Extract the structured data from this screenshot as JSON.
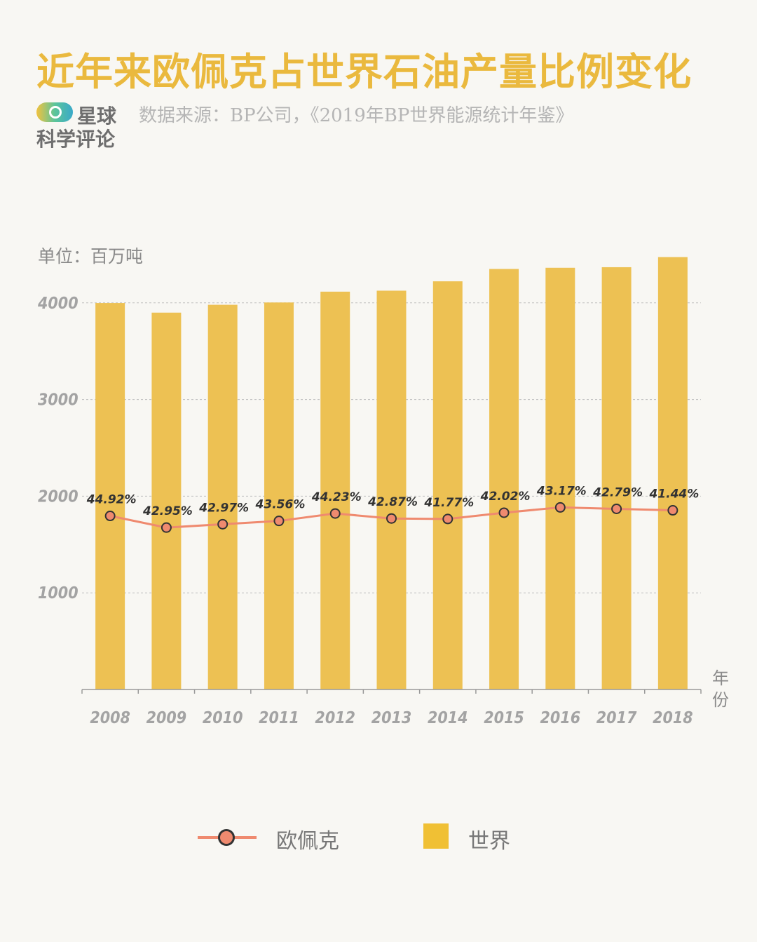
{
  "title": "近年来欧佩克占世界石油产量比例变化",
  "logo": {
    "line1": "星球",
    "line2": "科学评论"
  },
  "source": "数据来源：BP公司，《2019年BP世界能源统计年鉴》",
  "unit_label": "单位：百万吨",
  "x_axis_name": [
    "年",
    "份"
  ],
  "colors": {
    "bar": "#edc153",
    "line": "#ef8a6f",
    "marker_stroke": "#333333",
    "title": "#eab93e"
  },
  "legend": {
    "opec": "欧佩克",
    "world": "世界"
  },
  "chart_data": {
    "type": "bar+line",
    "title": "近年来欧佩克占世界石油产量比例变化",
    "ylabel": "单位：百万吨",
    "xlabel": "年份",
    "ylim": [
      0,
      4500
    ],
    "yticks": [
      1000,
      2000,
      3000,
      4000
    ],
    "categories": [
      "2008",
      "2009",
      "2010",
      "2011",
      "2012",
      "2013",
      "2014",
      "2015",
      "2016",
      "2017",
      "2018"
    ],
    "series": [
      {
        "name": "世界",
        "kind": "bar",
        "values": [
          3998,
          3899,
          3980,
          4004,
          4116,
          4126,
          4223,
          4351,
          4363,
          4369,
          4474
        ]
      },
      {
        "name": "欧佩克",
        "kind": "line",
        "values": [
          1796,
          1675,
          1710,
          1744,
          1821,
          1769,
          1764,
          1829,
          1884,
          1869,
          1854
        ],
        "labels": [
          "44.92%",
          "42.95%",
          "42.97%",
          "43.56%",
          "44.23%",
          "42.87%",
          "41.77%",
          "42.02%",
          "43.17%",
          "42.79%",
          "41.44%"
        ]
      }
    ]
  }
}
